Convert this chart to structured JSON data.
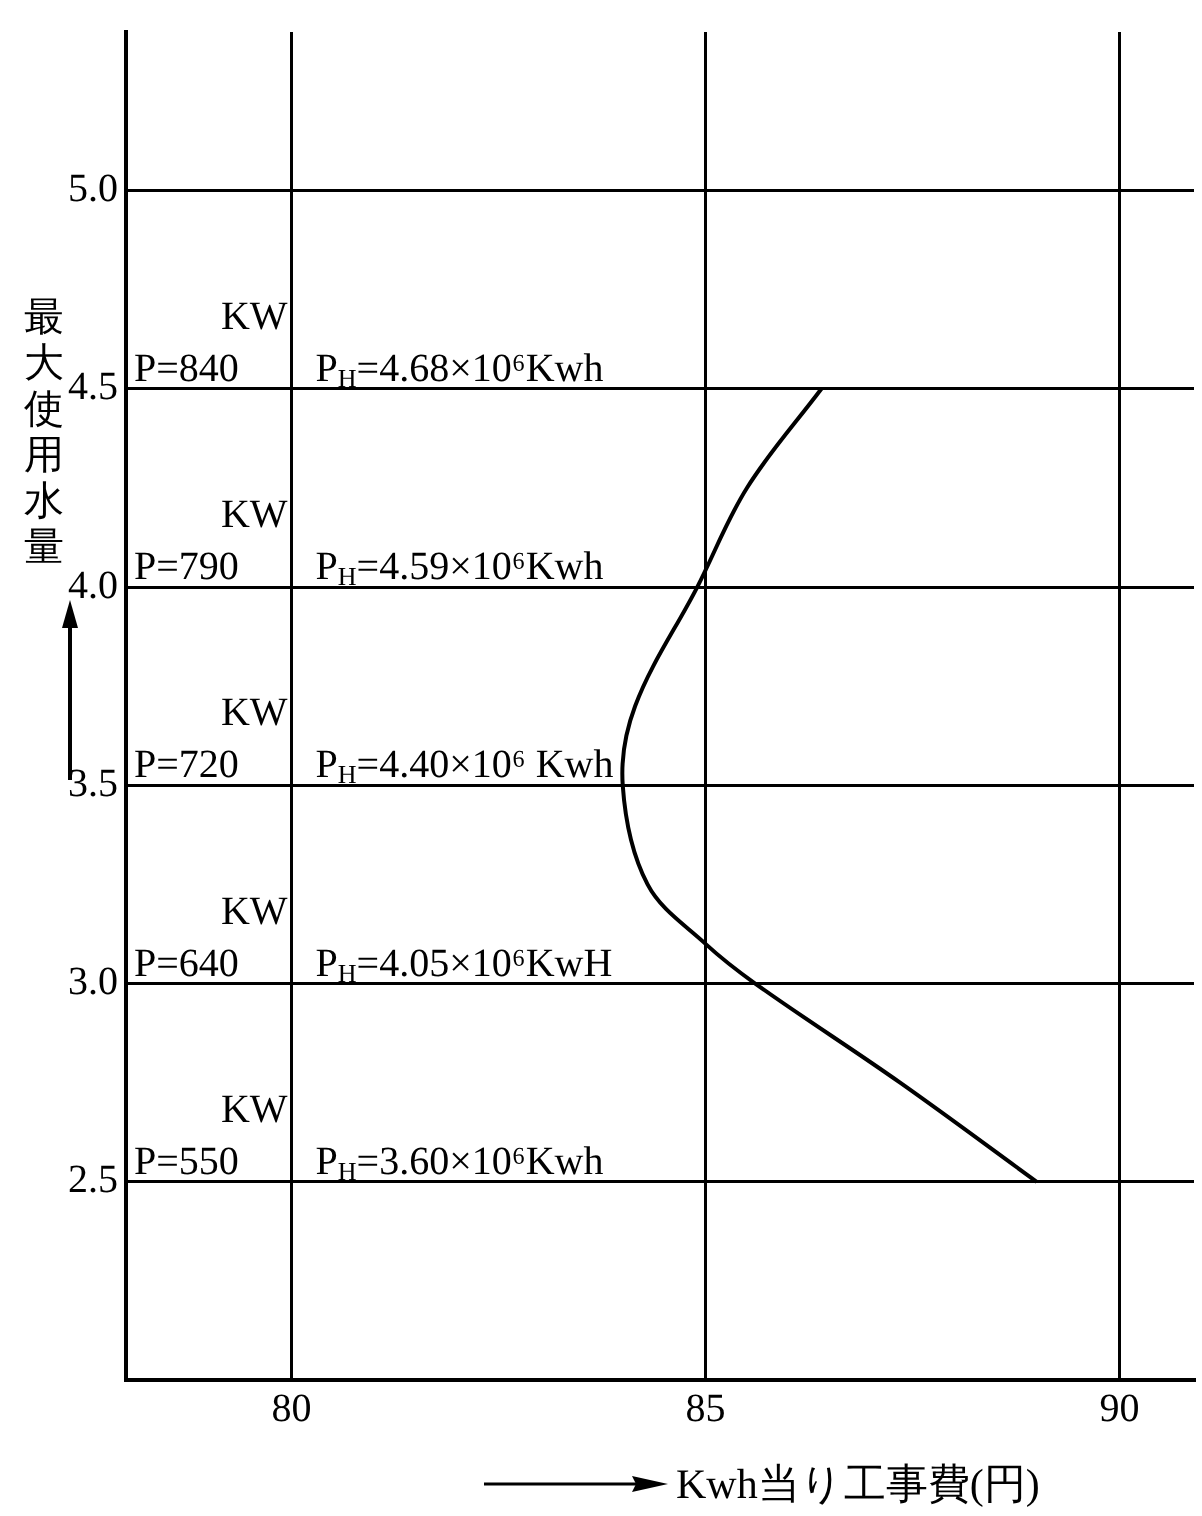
{
  "chart_data": {
    "type": "line",
    "xlabel": "Kwh当り工事費(円)",
    "ylabel": "最大使用水量",
    "series": [
      {
        "color": "#000000",
        "x": [
          89.0,
          87.35,
          85.6,
          85.0,
          84.3,
          84.0,
          84.15,
          84.9,
          85.5,
          86.4
        ],
        "values": [
          2.5,
          2.75,
          3.0,
          3.1,
          3.25,
          3.5,
          3.7,
          4.0,
          4.25,
          4.5
        ]
      }
    ],
    "xlim": [
      78,
      90.9
    ],
    "ylim": [
      2.0,
      5.4
    ],
    "xticks": [
      80,
      85,
      90
    ],
    "yticks": [
      2.5,
      {
        "value": 3,
        "label": "3.0"
      },
      3.5,
      {
        "value": 4,
        "label": "4.0"
      },
      4.5,
      {
        "value": 5,
        "label": "5.0"
      }
    ],
    "grid": true,
    "legend": false,
    "marker": "none",
    "line_style": "solid",
    "annotations": [
      "KW",
      "P=840",
      "P$_{H}$=4.68×10⁶Kwh",
      "KW",
      "P=790",
      "P$_{H}$=4.59×10⁶Kwh",
      "KW",
      "P=720",
      "P$_{H}$=4.40×10⁶ Kwh",
      "KW",
      "P=640",
      "P$_{H}$=4.05×10⁶KwH",
      "KW",
      "P=550",
      "P$_{H}$=3.60×10⁶Kwh"
    ]
  }
}
